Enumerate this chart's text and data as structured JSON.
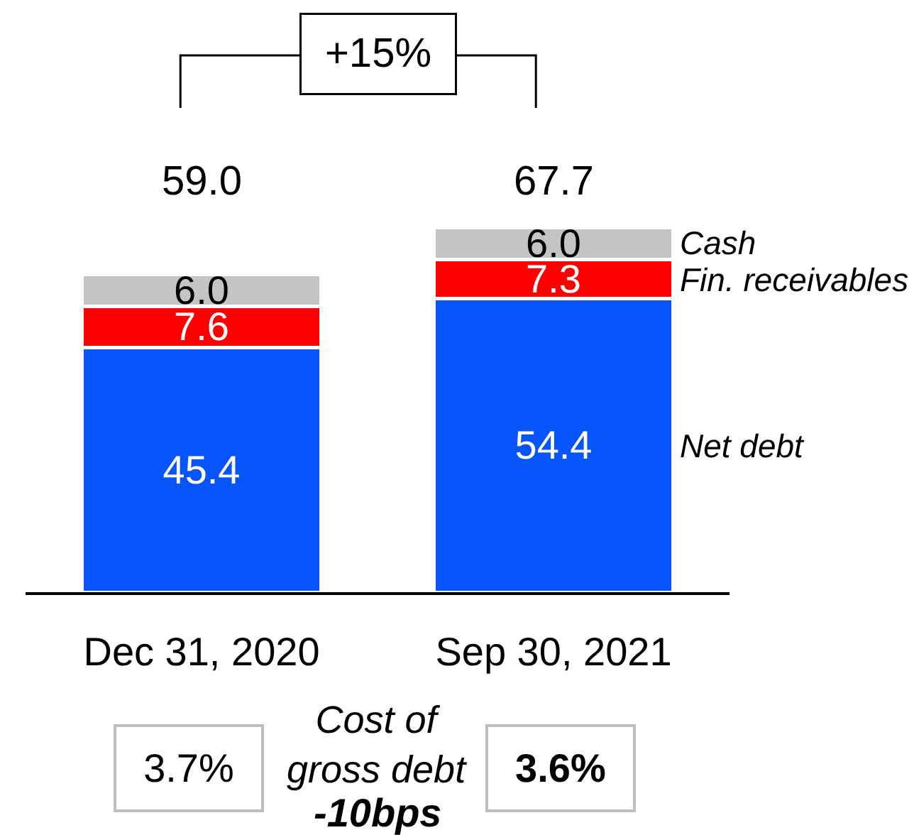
{
  "chart_data": {
    "type": "bar",
    "stacked": true,
    "categories": [
      "Dec 31, 2020",
      "Sep 30, 2021"
    ],
    "series": [
      {
        "name": "Net debt",
        "color": "#0755fa",
        "values": [
          45.4,
          54.4
        ],
        "value_labels": [
          "45.4",
          "54.4"
        ]
      },
      {
        "name": "Fin. receivables",
        "color": "#ff0000",
        "values": [
          7.6,
          7.3
        ],
        "value_labels": [
          "7.6",
          "7.3"
        ]
      },
      {
        "name": "Cash",
        "color": "#c4c4c4",
        "values": [
          6.0,
          6.0
        ],
        "value_labels": [
          "6.0",
          "6.0"
        ]
      }
    ],
    "totals": [
      "59.0",
      "67.7"
    ],
    "annotations": [
      "+15%",
      "3.7%",
      "Cost of gross debt",
      "-10bps",
      "3.6%"
    ]
  }
}
